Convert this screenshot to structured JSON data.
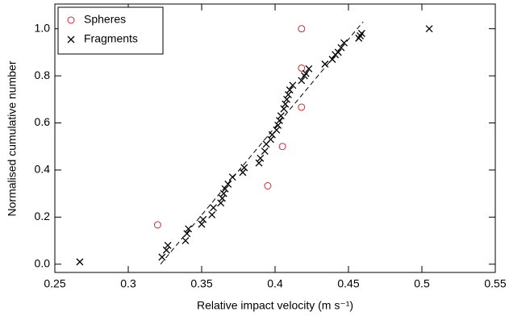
{
  "chart_data": {
    "type": "scatter",
    "xlabel": "Relative impact velocity (m s⁻¹)",
    "ylabel": "Normalised cumulative number",
    "xlim": [
      0.25,
      0.55
    ],
    "xticks": [
      0.25,
      0.3,
      0.35,
      0.4,
      0.45,
      0.5,
      0.55
    ],
    "ylim": [
      -0.035,
      1.105
    ],
    "yticks": [
      {
        "value": 0,
        "label": "0.0"
      },
      0.2,
      0.4,
      0.6,
      0.8,
      {
        "value": 1,
        "label": "1.0"
      }
    ],
    "legend": "upper left",
    "series": [
      {
        "name": "Spheres",
        "color": "#d62728",
        "marker": "circle",
        "x": [
          0.32,
          0.395,
          0.405,
          0.418,
          0.418,
          0.418
        ],
        "values": [
          0.167,
          0.333,
          0.5,
          0.667,
          0.833,
          1.0
        ]
      },
      {
        "name": "Fragments",
        "color": "#000000",
        "marker": "x",
        "x": [
          0.267,
          0.323,
          0.326,
          0.327,
          0.339,
          0.34,
          0.341,
          0.35,
          0.351,
          0.357,
          0.358,
          0.363,
          0.364,
          0.365,
          0.366,
          0.368,
          0.371,
          0.378,
          0.379,
          0.389,
          0.39,
          0.393,
          0.394,
          0.397,
          0.398,
          0.401,
          0.402,
          0.403,
          0.404,
          0.406,
          0.407,
          0.408,
          0.409,
          0.41,
          0.412,
          0.418,
          0.42,
          0.421,
          0.423,
          0.434,
          0.439,
          0.441,
          0.443,
          0.445,
          0.447,
          0.457,
          0.458,
          0.459,
          0.505
        ],
        "values": [
          0.01,
          0.03,
          0.06,
          0.08,
          0.1,
          0.13,
          0.15,
          0.17,
          0.19,
          0.21,
          0.24,
          0.26,
          0.28,
          0.3,
          0.32,
          0.34,
          0.37,
          0.39,
          0.41,
          0.43,
          0.45,
          0.48,
          0.51,
          0.53,
          0.55,
          0.57,
          0.59,
          0.61,
          0.63,
          0.66,
          0.68,
          0.7,
          0.72,
          0.74,
          0.76,
          0.78,
          0.8,
          0.81,
          0.83,
          0.85,
          0.87,
          0.89,
          0.9,
          0.92,
          0.94,
          0.96,
          0.97,
          0.98,
          1.0
        ]
      }
    ],
    "fit_line": {
      "x": [
        0.322,
        0.46
      ],
      "values": [
        0.0,
        1.03
      ],
      "color": "#000000",
      "dashed": true
    }
  }
}
